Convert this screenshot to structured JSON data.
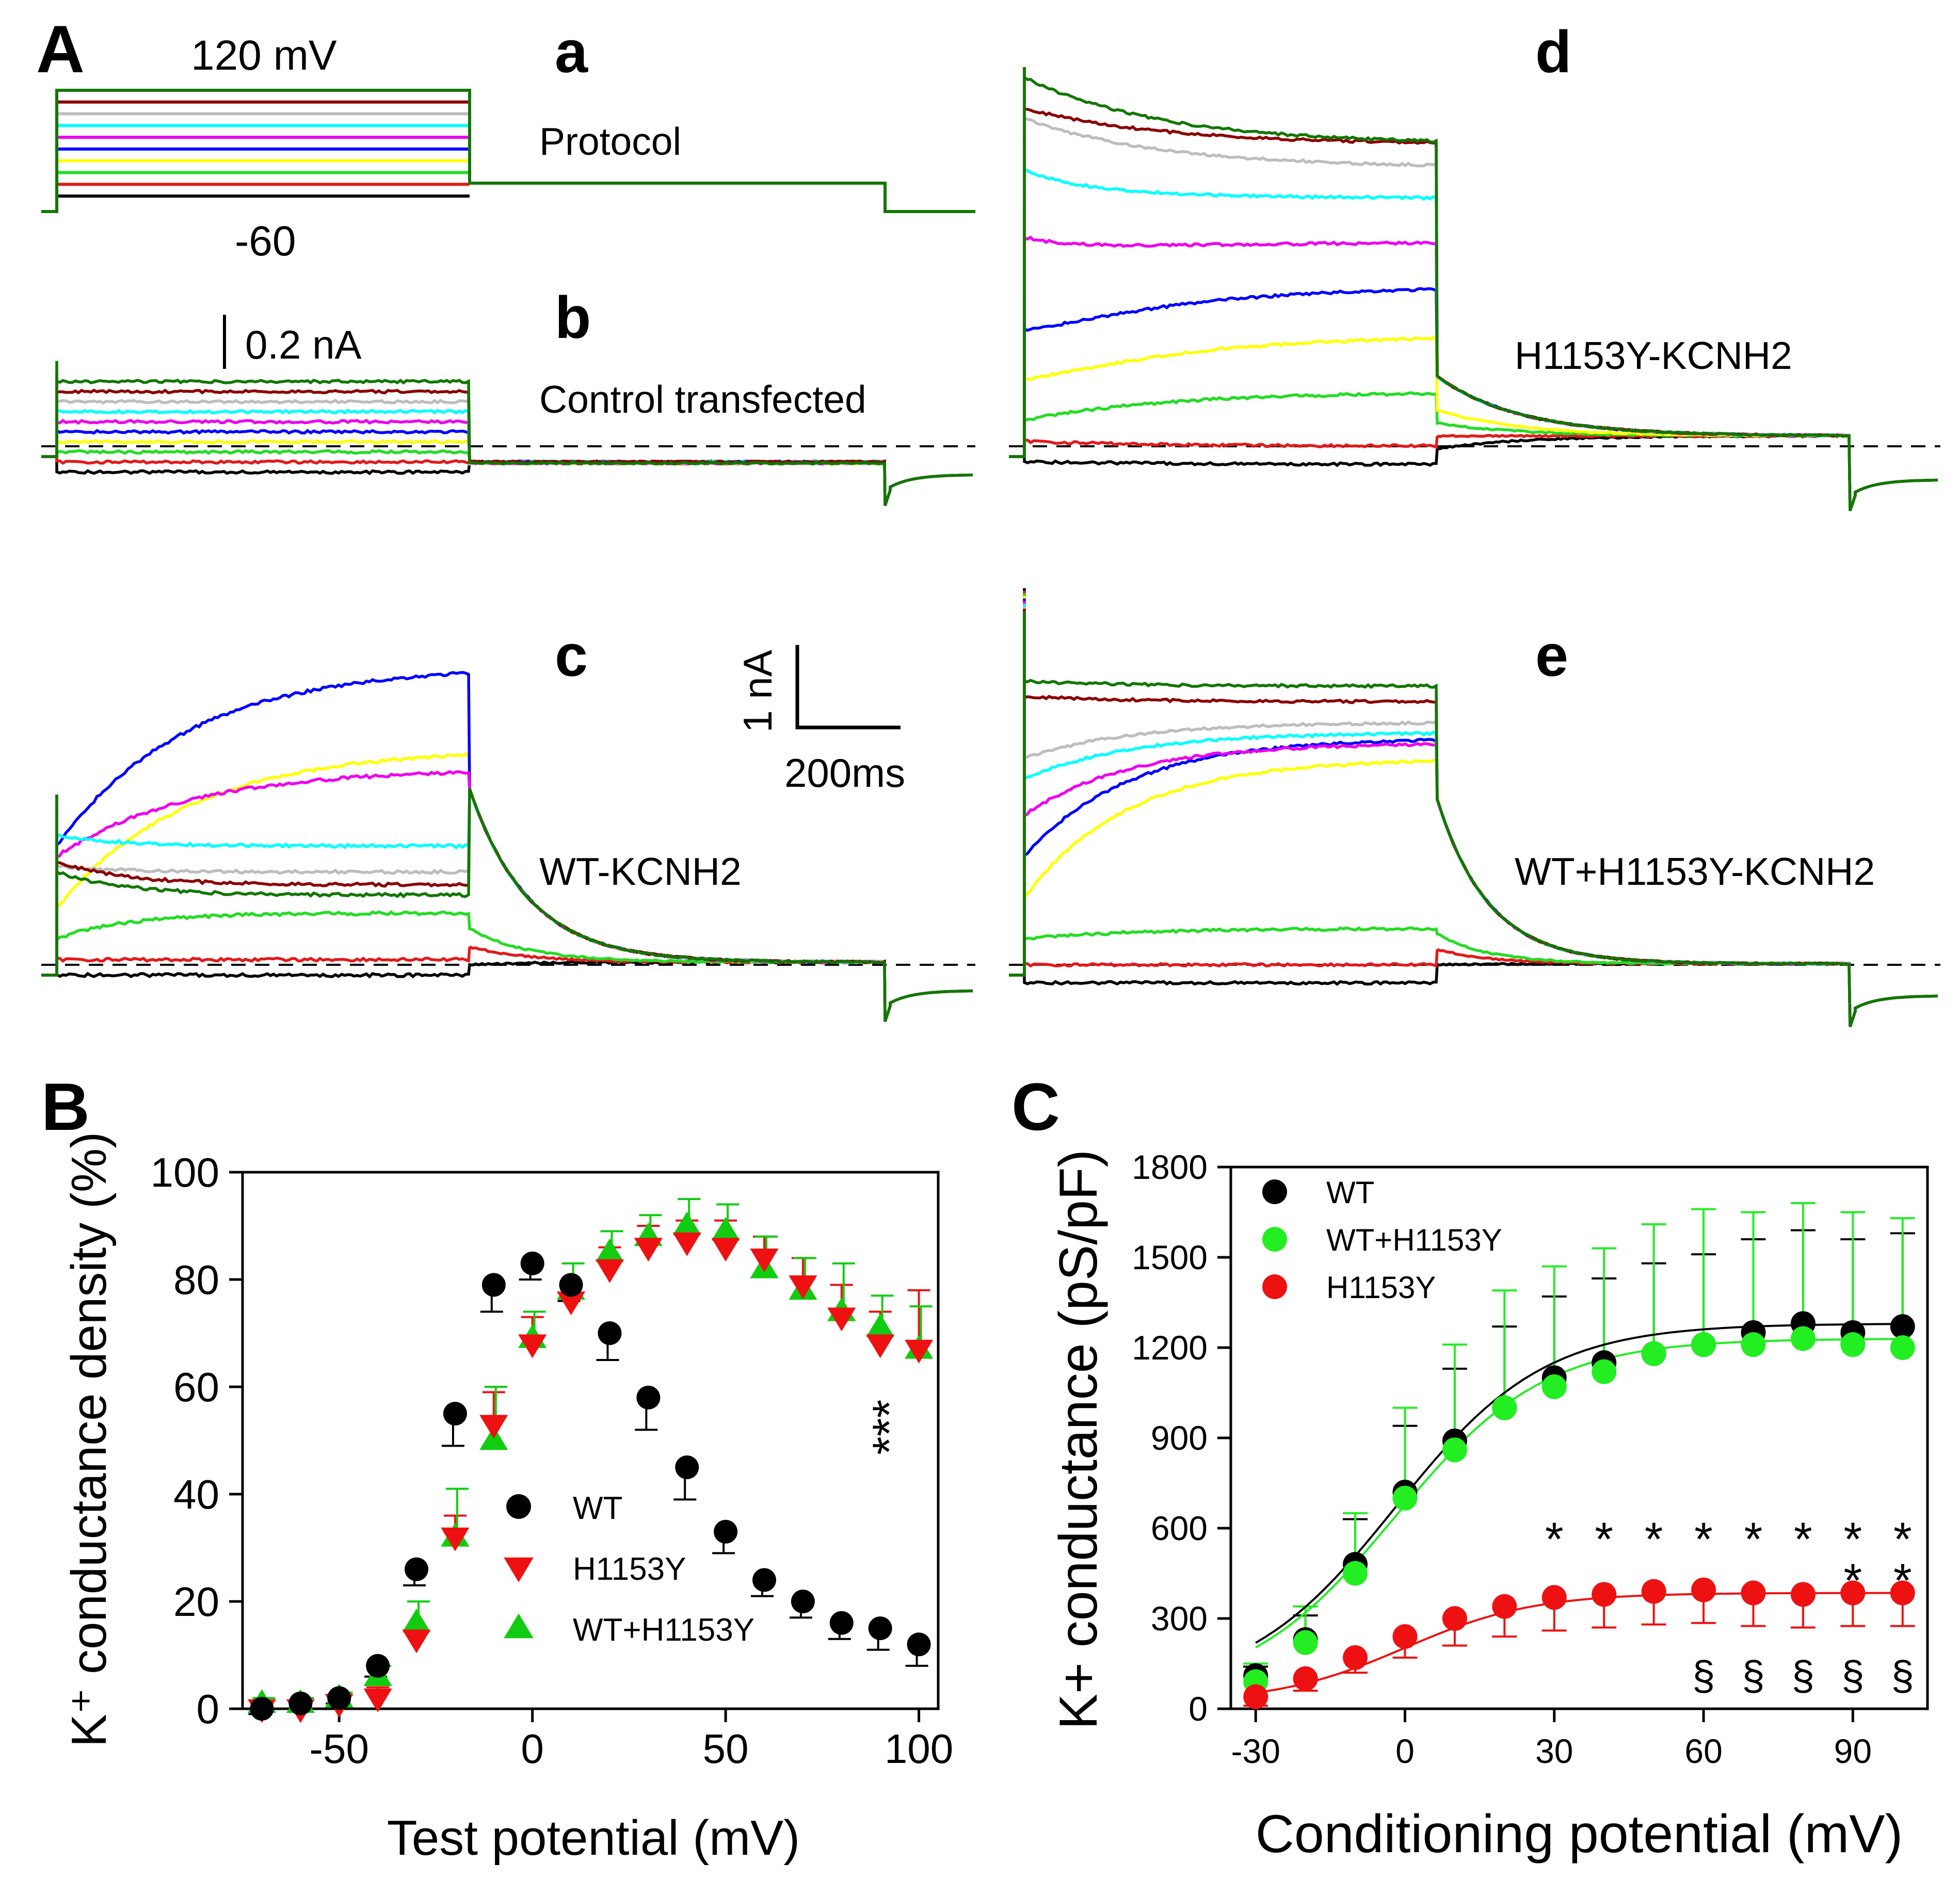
{
  "panel_letters": {
    "A": "A",
    "B": "B",
    "C": "C"
  },
  "sub_letters": {
    "a": "a",
    "b": "b",
    "c": "c",
    "d": "d",
    "e": "e"
  },
  "protocol": {
    "top_label": "120 mV",
    "bottom_label": "-60",
    "name": "Protocol"
  },
  "traces_labels": {
    "b": "Control transfected",
    "c": "WT-KCNH2",
    "d": "H1153Y-KCNH2",
    "e": "WT+H1153Y-KCNH2"
  },
  "scalebars": {
    "small_current": "0.2 nA",
    "current": "1 nA",
    "time": "200ms"
  },
  "colors": {
    "black": "#000000",
    "red": "#e31a1c",
    "lightgreen": "#22dd22",
    "yellow": "#ffff00",
    "blue": "#0000ff",
    "magenta": "#ee00ee",
    "cyan": "#00ffff",
    "gray": "#bdbdbd",
    "darkred": "#8b0000",
    "darkgreen": "#117700"
  },
  "trace_order": [
    "black",
    "red",
    "lightgreen",
    "yellow",
    "blue",
    "magenta",
    "cyan",
    "gray",
    "darkred",
    "darkgreen"
  ],
  "chart_data": [
    {
      "id": "B",
      "type": "scatter",
      "xlabel": "Test potential (mV)",
      "ylabel": "K⁺ conductance density (%)",
      "xlim": [
        -75,
        105
      ],
      "ylim": [
        0,
        100
      ],
      "xticks": [
        -50,
        0,
        50,
        100
      ],
      "yticks": [
        0,
        20,
        40,
        60,
        80,
        100
      ],
      "legend_position": "bottom-right",
      "significance": "***",
      "series": [
        {
          "name": "WT",
          "marker": "circle",
          "color": "#000000",
          "x": [
            -70,
            -60,
            -50,
            -40,
            -30,
            -20,
            -10,
            0,
            10,
            20,
            30,
            40,
            50,
            60,
            70,
            80,
            90,
            100
          ],
          "y": [
            0,
            1,
            2,
            8,
            26,
            55,
            79,
            83,
            79,
            70,
            58,
            45,
            33,
            24,
            20,
            16,
            15,
            12
          ],
          "err": [
            1,
            1,
            1,
            2,
            3,
            6,
            5,
            3,
            3,
            5,
            6,
            6,
            4,
            3,
            3,
            3,
            4,
            4
          ]
        },
        {
          "name": "H1153Y",
          "marker": "triangle-down",
          "color": "#ee1111",
          "x": [
            -70,
            -60,
            -50,
            -40,
            -30,
            -20,
            -10,
            0,
            10,
            20,
            30,
            40,
            50,
            60,
            70,
            80,
            90,
            100
          ],
          "y": [
            0,
            0,
            1,
            2,
            13,
            32,
            53,
            68,
            76,
            82,
            86,
            87,
            86,
            84,
            79,
            73,
            68,
            67
          ],
          "err": [
            1,
            1,
            1,
            2,
            2,
            4,
            6,
            5,
            3,
            4,
            4,
            4,
            5,
            4,
            5,
            6,
            6,
            11
          ]
        },
        {
          "name": "WT+H1153Y",
          "marker": "triangle-up",
          "color": "#11cc11",
          "x": [
            -70,
            -60,
            -50,
            -40,
            -30,
            -20,
            -10,
            0,
            10,
            20,
            30,
            40,
            50,
            60,
            70,
            80,
            90,
            100
          ],
          "y": [
            1,
            1,
            2,
            6,
            16,
            32,
            50,
            69,
            78,
            85,
            88,
            90,
            89,
            82,
            78,
            74,
            71,
            67
          ],
          "err": [
            1,
            1,
            1,
            2,
            4,
            9,
            10,
            5,
            5,
            4,
            4,
            5,
            5,
            6,
            6,
            9,
            6,
            8
          ]
        }
      ]
    },
    {
      "id": "C",
      "type": "scatter",
      "xlabel": "Conditioning potential (mV)",
      "ylabel": "K+ conductance (pS/pF)",
      "xlim": [
        -35,
        105
      ],
      "ylim": [
        0,
        1800
      ],
      "xticks": [
        -30,
        0,
        30,
        60,
        90
      ],
      "yticks": [
        0,
        300,
        600,
        900,
        1200,
        1500,
        1800
      ],
      "legend_position": "top-left",
      "stars": [
        30,
        40,
        50,
        60,
        70,
        80,
        90,
        100
      ],
      "double_stars": [
        90,
        100
      ],
      "section_marks": [
        60,
        70,
        80,
        90,
        100
      ],
      "series": [
        {
          "name": "WT",
          "marker": "circle",
          "color": "#000000",
          "x": [
            -30,
            -20,
            -10,
            0,
            10,
            20,
            30,
            40,
            50,
            60,
            70,
            80,
            90,
            100
          ],
          "y": [
            110,
            230,
            480,
            720,
            890,
            1000,
            1100,
            1150,
            1180,
            1210,
            1250,
            1280,
            1250,
            1270
          ],
          "err_up": [
            30,
            80,
            150,
            220,
            240,
            270,
            270,
            280,
            300,
            300,
            310,
            310,
            310,
            310
          ],
          "fit": true
        },
        {
          "name": "WT+H1153Y",
          "marker": "circle",
          "color": "#22ee22",
          "x": [
            -30,
            -20,
            -10,
            0,
            10,
            20,
            30,
            40,
            50,
            60,
            70,
            80,
            90,
            100
          ],
          "y": [
            90,
            220,
            450,
            700,
            860,
            1000,
            1070,
            1120,
            1180,
            1210,
            1210,
            1230,
            1210,
            1200
          ],
          "err_up": [
            60,
            120,
            200,
            300,
            350,
            390,
            400,
            410,
            430,
            450,
            440,
            450,
            440,
            430
          ],
          "fit": true
        },
        {
          "name": "H1153Y",
          "marker": "circle",
          "color": "#ee1111",
          "x": [
            -30,
            -20,
            -10,
            0,
            10,
            20,
            30,
            40,
            50,
            60,
            70,
            80,
            90,
            100
          ],
          "y": [
            40,
            100,
            170,
            240,
            300,
            340,
            370,
            380,
            390,
            395,
            385,
            380,
            385,
            385
          ],
          "err_dn": [
            30,
            40,
            50,
            70,
            90,
            100,
            110,
            110,
            110,
            110,
            110,
            110,
            110,
            110
          ],
          "fit": true
        }
      ]
    }
  ]
}
